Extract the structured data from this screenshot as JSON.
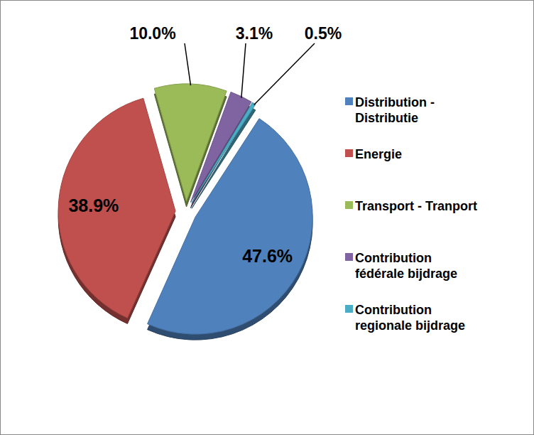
{
  "chart_data": {
    "type": "pie",
    "categories": [
      "Distribution - Distributie",
      "Energie",
      "Transport - Tranport",
      "Contribution fédérale bijdrage",
      "Contribution regionale bijdrage"
    ],
    "values": [
      47.6,
      38.9,
      10.0,
      3.1,
      0.5
    ],
    "value_labels": [
      "47.6%",
      "38.9%",
      "10.0%",
      "3.1%",
      "0.5%"
    ],
    "colors": [
      "#4f81bd",
      "#c0504d",
      "#9bbb59",
      "#8064a2",
      "#4bacc6"
    ],
    "data_labels": true,
    "legend": "right"
  }
}
